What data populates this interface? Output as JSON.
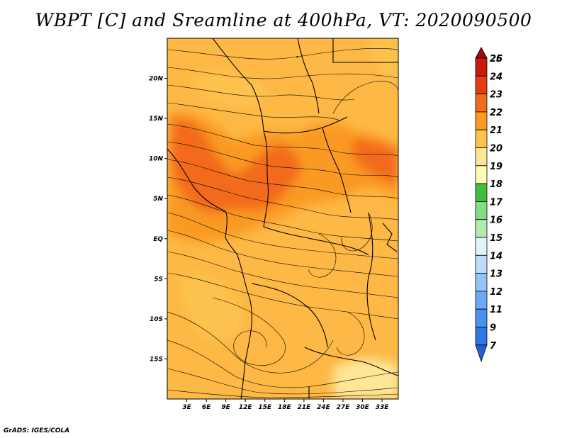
{
  "title": "WBPT [C] and Sreamline at 400hPa, VT: 2020090500",
  "credit": "GrADS: IGES/COLA",
  "map": {
    "lon_range": [
      0,
      35.5
    ],
    "lat_range": [
      -20,
      25
    ],
    "lat_ticks": [
      {
        "value": 20,
        "label": "20N"
      },
      {
        "value": 15,
        "label": "15N"
      },
      {
        "value": 10,
        "label": "10N"
      },
      {
        "value": 5,
        "label": "5N"
      },
      {
        "value": 0,
        "label": "EQ"
      },
      {
        "value": -5,
        "label": "5S"
      },
      {
        "value": -10,
        "label": "10S"
      },
      {
        "value": -15,
        "label": "15S"
      }
    ],
    "lon_ticks": [
      {
        "value": 3,
        "label": "3E"
      },
      {
        "value": 6,
        "label": "6E"
      },
      {
        "value": 9,
        "label": "9E"
      },
      {
        "value": 12,
        "label": "12E"
      },
      {
        "value": 15,
        "label": "15E"
      },
      {
        "value": 18,
        "label": "18E"
      },
      {
        "value": 21,
        "label": "21E"
      },
      {
        "value": 24,
        "label": "24E"
      },
      {
        "value": 27,
        "label": "27E"
      },
      {
        "value": 30,
        "label": "30E"
      },
      {
        "value": 33,
        "label": "33E"
      }
    ],
    "background_color": "#fdb845"
  },
  "colorbar": {
    "labels": [
      "7",
      "9",
      "11",
      "12",
      "13",
      "14",
      "15",
      "16",
      "17",
      "18",
      "19",
      "20",
      "21",
      "22",
      "23",
      "24",
      "25",
      "26"
    ],
    "colors": [
      "#1f62d8",
      "#2e78e6",
      "#4a92ef",
      "#6ba9f3",
      "#92c4f7",
      "#bcdcfa",
      "#e2f3f8",
      "#b4eab0",
      "#83dc83",
      "#3fbd3f",
      "#fffbb9",
      "#ffe596",
      "#fdc24e",
      "#fa9a24",
      "#f36a1a",
      "#e43d14",
      "#c91a10",
      "#a40808"
    ]
  }
}
